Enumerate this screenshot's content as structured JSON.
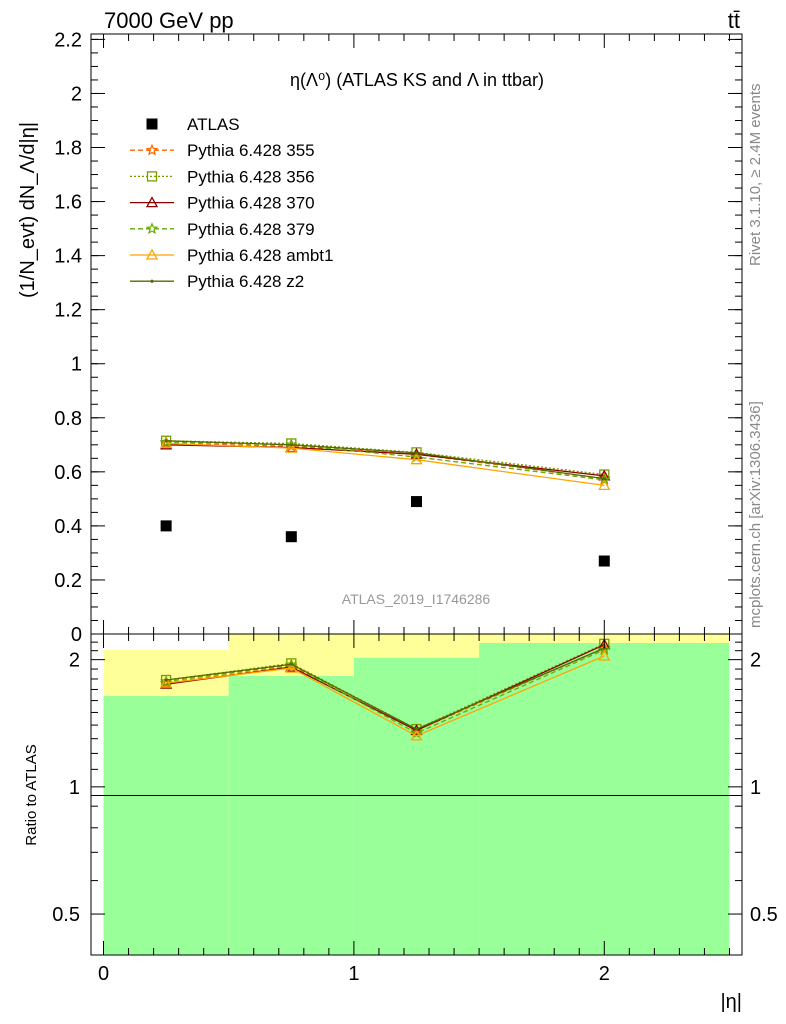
{
  "header": {
    "energy_label": "7000 GeV pp",
    "process_label": "tt̄"
  },
  "side_labels": {
    "rivet": "Rivet 3.1.10, ≥ 2.4M events",
    "mcplots": "mcplots.cern.ch [arXiv:1306.3436]"
  },
  "chart_data": [
    {
      "type": "scatter",
      "panel": "main",
      "title": "η(Λ⁰) (ATLAS KS and Λ in ttbar)",
      "ylabel": "(1/N_evt) dN_Λ/d|η|",
      "watermark": "ATLAS_2019_I1746286",
      "xlim": [
        -0.05,
        2.55
      ],
      "ylim": [
        0,
        2.22
      ],
      "y_ticks": [
        "0",
        "0.2",
        "0.4",
        "0.6",
        "0.8",
        "1",
        "1.2",
        "1.4",
        "1.6",
        "1.8",
        "2",
        "2.2"
      ],
      "legend_position": "top-left",
      "x": [
        0.25,
        0.75,
        1.25,
        2.0
      ],
      "series": [
        {
          "name": "ATLAS",
          "color": "#000000",
          "marker": "square",
          "values": [
            0.4,
            0.36,
            0.49,
            0.27
          ]
        },
        {
          "name": "Pythia 6.428 355",
          "color": "#ff6600",
          "marker": "star",
          "dash": "5,3",
          "values": [
            0.705,
            0.695,
            0.665,
            0.575
          ]
        },
        {
          "name": "Pythia 6.428 356",
          "color": "#7a9a00",
          "marker": "open-square",
          "dash": "2,2",
          "values": [
            0.715,
            0.705,
            0.672,
            0.59
          ]
        },
        {
          "name": "Pythia 6.428 370",
          "color": "#8b0000",
          "marker": "open-triangle",
          "dash": "",
          "values": [
            0.7,
            0.69,
            0.665,
            0.585
          ]
        },
        {
          "name": "Pythia 6.428 379",
          "color": "#66aa00",
          "marker": "star",
          "dash": "5,3",
          "values": [
            0.71,
            0.7,
            0.655,
            0.57
          ]
        },
        {
          "name": "Pythia 6.428 ambt1",
          "color": "#ffa500",
          "marker": "open-triangle",
          "dash": "",
          "values": [
            0.705,
            0.688,
            0.645,
            0.55
          ]
        },
        {
          "name": "Pythia 6.428 z2",
          "color": "#556b00",
          "marker": "dot",
          "dash": "",
          "values": [
            0.715,
            0.7,
            0.67,
            0.575
          ]
        }
      ]
    },
    {
      "type": "line",
      "panel": "ratio",
      "xlabel": "|η|",
      "ylabel": "Ratio to ATLAS",
      "y_scale": "log",
      "xlim": [
        -0.05,
        2.55
      ],
      "ylim": [
        0.4,
        2.3
      ],
      "x_ticks": [
        "0",
        "1",
        "2"
      ],
      "y_ticks": [
        "0.5",
        "1",
        "2"
      ],
      "bands": {
        "edges": [
          0,
          0.5,
          1.0,
          1.5,
          2.5
        ],
        "stat_color": "#99ff99",
        "syst_color": "#ffff99",
        "green_low": [
          0.4,
          0.4,
          0.4,
          0.4
        ],
        "green_high": [
          1.64,
          1.83,
          2.02,
          2.19
        ],
        "yellow_low": [
          0.38,
          0.4,
          0.4,
          0.4
        ],
        "yellow_high": [
          2.11,
          2.3,
          2.3,
          2.3
        ]
      },
      "x": [
        0.25,
        0.75,
        1.25,
        2.0
      ],
      "series": [
        {
          "name": "Pythia 6.428 355",
          "values": [
            1.76,
            1.93,
            1.36,
            2.13
          ]
        },
        {
          "name": "Pythia 6.428 356",
          "values": [
            1.79,
            1.96,
            1.37,
            2.18
          ]
        },
        {
          "name": "Pythia 6.428 370",
          "values": [
            1.75,
            1.92,
            1.36,
            2.17
          ]
        },
        {
          "name": "Pythia 6.428 379",
          "values": [
            1.775,
            1.945,
            1.34,
            2.11
          ]
        },
        {
          "name": "Pythia 6.428 ambt1",
          "values": [
            1.76,
            1.91,
            1.32,
            2.04
          ]
        },
        {
          "name": "Pythia 6.428 z2",
          "values": [
            1.79,
            1.95,
            1.37,
            2.13
          ]
        }
      ]
    }
  ]
}
